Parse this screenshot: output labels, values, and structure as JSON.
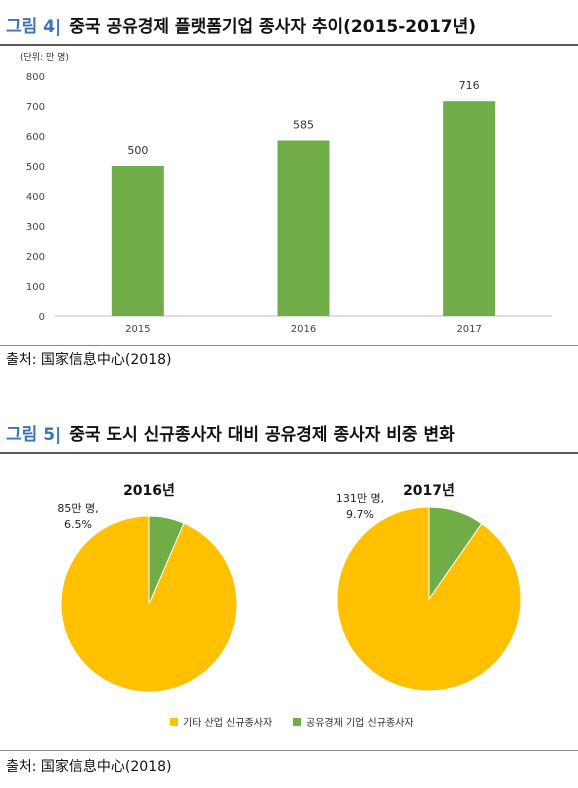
{
  "figure4": {
    "number": "그림 4|",
    "title": "중국 공유경제 플랫폼기업 종사자 추이(2015-2017년)",
    "unit_label": "(단위: 만 명)",
    "source": "출처: 国家信息中心(2018)"
  },
  "figure5": {
    "number": "그림 5|",
    "title": "중국 도시 신규종사자 대비 공유경제 종사자 비중 변화",
    "source": "출처: 国家信息中心(2018)"
  },
  "colors": {
    "bar": "#70ad47",
    "other": "#ffc000",
    "sharing": "#70ad47",
    "accent": "#3a73b8"
  },
  "chart_data": [
    {
      "type": "bar",
      "categories": [
        "2015",
        "2016",
        "2017"
      ],
      "values": [
        500,
        585,
        716
      ],
      "data_labels": [
        "500",
        "585",
        "716"
      ],
      "ylim": [
        0,
        800
      ],
      "yticks": [
        "0",
        "100",
        "200",
        "300",
        "400",
        "500",
        "600",
        "700",
        "800"
      ],
      "grid": false
    },
    {
      "type": "pie",
      "title": "2016년",
      "labels": [
        "기타 산업 신규종사자",
        "공유경제 기업 신규종사자"
      ],
      "values": [
        93.5,
        6.5
      ],
      "annotation": [
        "85만 명,",
        "6.5%"
      ]
    },
    {
      "type": "pie",
      "title": "2017년",
      "labels": [
        "기타 산업 신규종사자",
        "공유경제 기업 신규종사자"
      ],
      "values": [
        90.3,
        9.7
      ],
      "annotation": [
        "131만 명,",
        "9.7%"
      ]
    }
  ],
  "legend": [
    "기타 산업 신규종사자",
    "공유경제 기업 신규종사자"
  ]
}
